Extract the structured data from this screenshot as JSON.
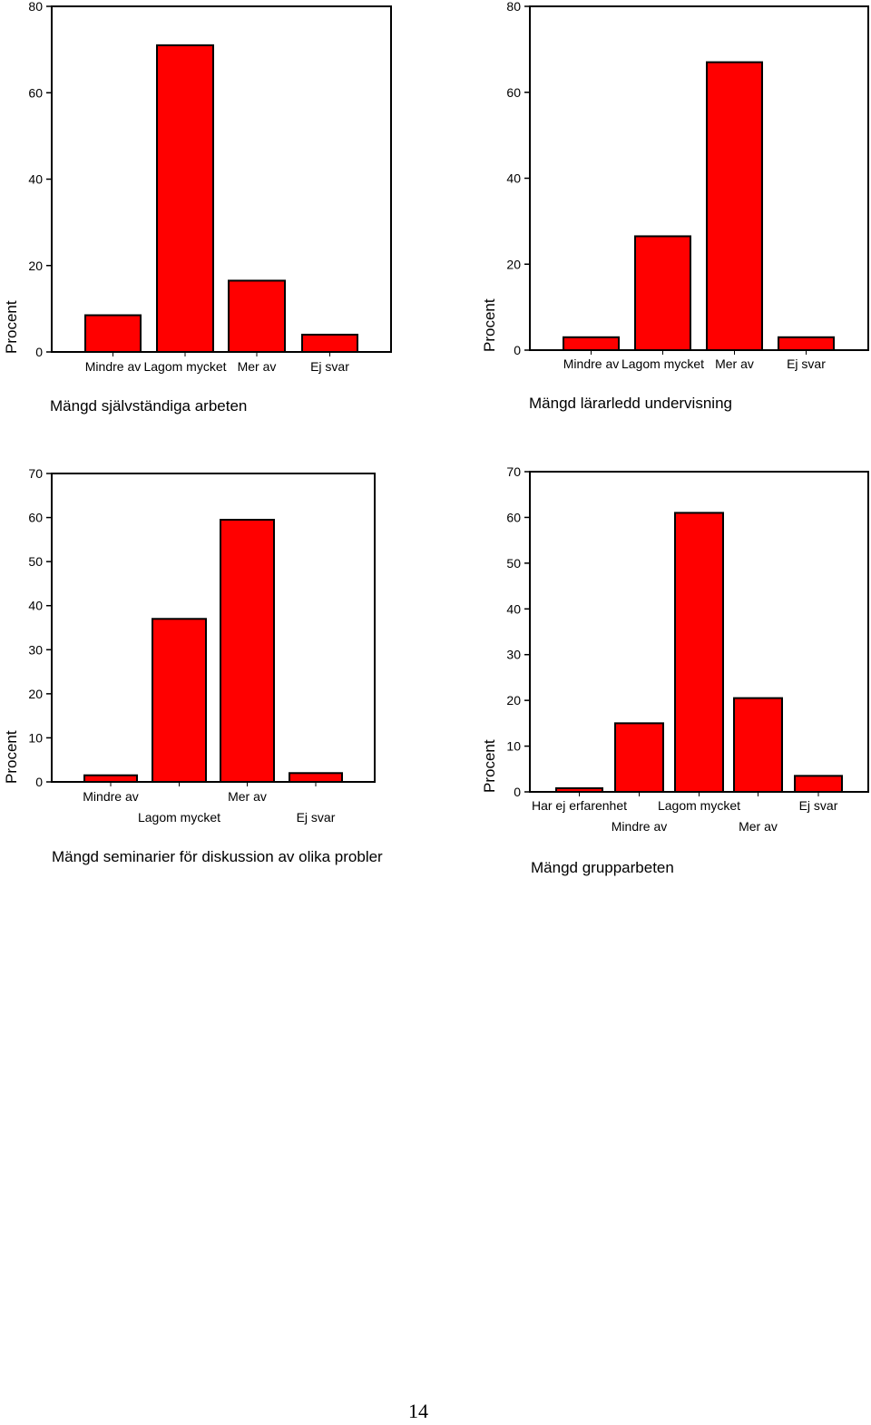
{
  "page": {
    "page_number": "14"
  },
  "chart_data": [
    {
      "type": "bar",
      "title": "Mängd självständiga arbeten",
      "ylabel": "Procent",
      "xlabel": "",
      "ylim": [
        0,
        80
      ],
      "yticks": [
        "0",
        "20",
        "40",
        "60",
        "80"
      ],
      "categories": [
        "Mindre av",
        "Lagom mycket",
        "Mer av",
        "Ej svar"
      ],
      "values": [
        8.5,
        71,
        16.5,
        4
      ],
      "bar_color": "#FF0000"
    },
    {
      "type": "bar",
      "title": "Mängd lärarledd undervisning",
      "ylabel": "Procent",
      "xlabel": "",
      "ylim": [
        0,
        80
      ],
      "yticks": [
        "0",
        "20",
        "40",
        "60",
        "80"
      ],
      "categories": [
        "Mindre av",
        "Lagom mycket",
        "Mer av",
        "Ej svar"
      ],
      "values": [
        3,
        26.5,
        67,
        3
      ],
      "bar_color": "#FF0000"
    },
    {
      "type": "bar",
      "title": "Mängd seminarier för diskussion av olika probler",
      "ylabel": "Procent",
      "xlabel": "",
      "ylim": [
        0,
        70
      ],
      "yticks": [
        "0",
        "10",
        "20",
        "30",
        "40",
        "50",
        "60",
        "70"
      ],
      "categories": [
        "Mindre av",
        "Lagom mycket",
        "Mer av",
        "Ej svar"
      ],
      "values": [
        1.5,
        37,
        59.5,
        2
      ],
      "bar_color": "#FF0000"
    },
    {
      "type": "bar",
      "title": "Mängd grupparbeten",
      "ylabel": "Procent",
      "xlabel": "",
      "ylim": [
        0,
        70
      ],
      "yticks": [
        "0",
        "10",
        "20",
        "30",
        "40",
        "50",
        "60",
        "70"
      ],
      "categories": [
        "Har ej erfarenhet",
        "Mindre av",
        "Lagom mycket",
        "Mer av",
        "Ej svar"
      ],
      "values": [
        0.8,
        15,
        61,
        20.5,
        3.5
      ],
      "bar_color": "#FF0000"
    }
  ]
}
